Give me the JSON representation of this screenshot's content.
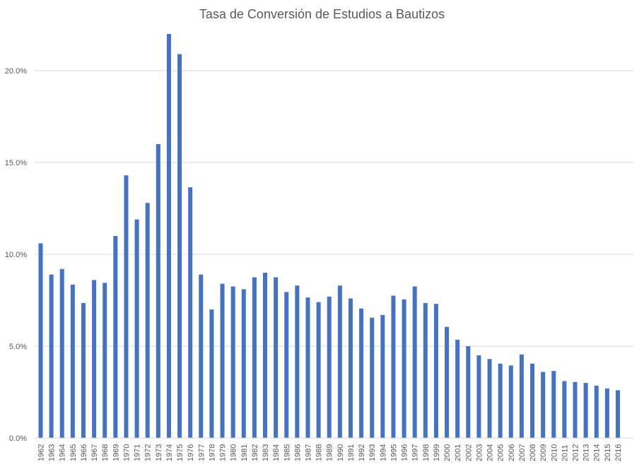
{
  "chart_data": {
    "type": "bar",
    "title": "Tasa de Conversión de Estudios a Bautizos",
    "xlabel": "",
    "ylabel": "",
    "ylim": [
      0,
      0.22
    ],
    "yticks": [
      0,
      0.05,
      0.1,
      0.15,
      0.2
    ],
    "ytick_labels": [
      "0.0%",
      "5.0%",
      "10.0%",
      "15.0%",
      "20.0%"
    ],
    "grid": true,
    "legend": "none",
    "bar_color": "#4472C4",
    "categories": [
      "1962",
      "1963",
      "1964",
      "1965",
      "1966",
      "1967",
      "1968",
      "1969",
      "1970",
      "1971",
      "1972",
      "1973",
      "1974",
      "1975",
      "1976",
      "1977",
      "1978",
      "1979",
      "1980",
      "1981",
      "1982",
      "1983",
      "1984",
      "1985",
      "1986",
      "1987",
      "1988",
      "1989",
      "1990",
      "1991",
      "1992",
      "1993",
      "1994",
      "1995",
      "1996",
      "1997",
      "1998",
      "1999",
      "2000",
      "2001",
      "2002",
      "2003",
      "2004",
      "2005",
      "2006",
      "2007",
      "2008",
      "2009",
      "2010",
      "2011",
      "2012",
      "2013",
      "2014",
      "2015",
      "2016"
    ],
    "values": [
      0.106,
      0.089,
      0.092,
      0.0835,
      0.0735,
      0.086,
      0.0845,
      0.11,
      0.143,
      0.119,
      0.128,
      0.16,
      0.22,
      0.209,
      0.1365,
      0.089,
      0.07,
      0.084,
      0.0825,
      0.081,
      0.0875,
      0.09,
      0.0875,
      0.0795,
      0.083,
      0.0765,
      0.074,
      0.077,
      0.083,
      0.076,
      0.0705,
      0.0655,
      0.067,
      0.0775,
      0.0755,
      0.0825,
      0.0735,
      0.073,
      0.0605,
      0.0535,
      0.05,
      0.045,
      0.043,
      0.0405,
      0.0395,
      0.0455,
      0.0405,
      0.036,
      0.0365,
      0.031,
      0.0305,
      0.03,
      0.0285,
      0.027,
      0.026
    ]
  }
}
